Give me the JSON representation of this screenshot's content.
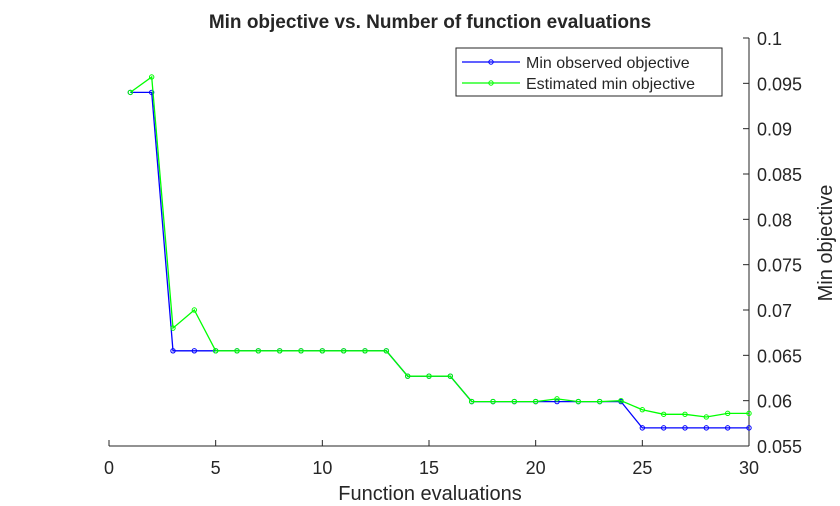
{
  "chart_data": {
    "type": "line",
    "title": "Min objective vs. Number of function evaluations",
    "xlabel": "Function evaluations",
    "ylabel": "Min objective",
    "xlim": [
      0,
      30
    ],
    "ylim": [
      0.055,
      0.1
    ],
    "x_ticks": [
      0,
      5,
      10,
      15,
      20,
      25,
      30
    ],
    "x_tick_labels": [
      "0",
      "5",
      "10",
      "15",
      "20",
      "25",
      "30"
    ],
    "y_ticks": [
      0.055,
      0.06,
      0.065,
      0.07,
      0.075,
      0.08,
      0.085,
      0.09,
      0.095,
      0.1
    ],
    "y_tick_labels": [
      "0.055",
      "0.06",
      "0.065",
      "0.07",
      "0.075",
      "0.08",
      "0.085",
      "0.09",
      "0.095",
      "0.1"
    ],
    "y_axis_side": "right",
    "grid": false,
    "legend_position": "top-right",
    "x": [
      1,
      2,
      3,
      4,
      5,
      6,
      7,
      8,
      9,
      10,
      11,
      12,
      13,
      14,
      15,
      16,
      17,
      18,
      19,
      20,
      21,
      22,
      23,
      24,
      25,
      26,
      27,
      28,
      29,
      30
    ],
    "series": [
      {
        "name": "Min observed objective",
        "color": "#0000ff",
        "values": [
          0.094,
          0.094,
          0.0655,
          0.0655,
          0.0655,
          0.0655,
          0.0655,
          0.0655,
          0.0655,
          0.0655,
          0.0655,
          0.0655,
          0.0655,
          0.0627,
          0.0627,
          0.0627,
          0.0599,
          0.0599,
          0.0599,
          0.0599,
          0.0599,
          0.0599,
          0.0599,
          0.0599,
          0.057,
          0.057,
          0.057,
          0.057,
          0.057,
          0.057
        ]
      },
      {
        "name": "Estimated min objective",
        "color": "#00ff00",
        "values": [
          0.094,
          0.0957,
          0.068,
          0.07,
          0.0655,
          0.0655,
          0.0655,
          0.0655,
          0.0655,
          0.0655,
          0.0655,
          0.0655,
          0.0655,
          0.0627,
          0.0627,
          0.0627,
          0.0599,
          0.0599,
          0.0599,
          0.0599,
          0.0602,
          0.0599,
          0.0599,
          0.06,
          0.059,
          0.0585,
          0.0585,
          0.0582,
          0.0586,
          0.0586
        ]
      }
    ]
  }
}
